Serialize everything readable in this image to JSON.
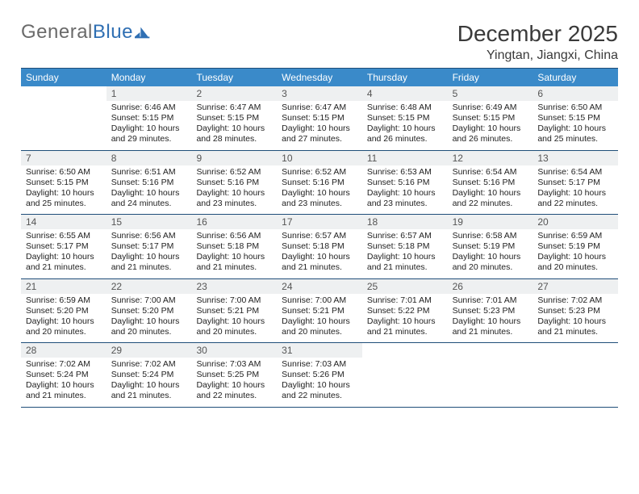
{
  "brand": {
    "name_grey": "General",
    "name_blue": "Blue"
  },
  "header": {
    "title": "December 2025",
    "location": "Yingtan, Jiangxi, China"
  },
  "colors": {
    "header_bar": "#3a8ac9",
    "rule": "#1f4e79",
    "daynum_bg": "#eef0f1",
    "logo_blue": "#2f6fb3",
    "logo_grey": "#6a6a6a"
  },
  "fonts": {
    "title_size_pt": 21,
    "location_size_pt": 12,
    "dow_size_pt": 9,
    "body_size_pt": 8
  },
  "dow": [
    "Sunday",
    "Monday",
    "Tuesday",
    "Wednesday",
    "Thursday",
    "Friday",
    "Saturday"
  ],
  "weeks": [
    [
      {
        "n": "",
        "sunrise": "",
        "sunset": "",
        "daylight": ""
      },
      {
        "n": "1",
        "sunrise": "Sunrise: 6:46 AM",
        "sunset": "Sunset: 5:15 PM",
        "daylight": "Daylight: 10 hours and 29 minutes."
      },
      {
        "n": "2",
        "sunrise": "Sunrise: 6:47 AM",
        "sunset": "Sunset: 5:15 PM",
        "daylight": "Daylight: 10 hours and 28 minutes."
      },
      {
        "n": "3",
        "sunrise": "Sunrise: 6:47 AM",
        "sunset": "Sunset: 5:15 PM",
        "daylight": "Daylight: 10 hours and 27 minutes."
      },
      {
        "n": "4",
        "sunrise": "Sunrise: 6:48 AM",
        "sunset": "Sunset: 5:15 PM",
        "daylight": "Daylight: 10 hours and 26 minutes."
      },
      {
        "n": "5",
        "sunrise": "Sunrise: 6:49 AM",
        "sunset": "Sunset: 5:15 PM",
        "daylight": "Daylight: 10 hours and 26 minutes."
      },
      {
        "n": "6",
        "sunrise": "Sunrise: 6:50 AM",
        "sunset": "Sunset: 5:15 PM",
        "daylight": "Daylight: 10 hours and 25 minutes."
      }
    ],
    [
      {
        "n": "7",
        "sunrise": "Sunrise: 6:50 AM",
        "sunset": "Sunset: 5:15 PM",
        "daylight": "Daylight: 10 hours and 25 minutes."
      },
      {
        "n": "8",
        "sunrise": "Sunrise: 6:51 AM",
        "sunset": "Sunset: 5:16 PM",
        "daylight": "Daylight: 10 hours and 24 minutes."
      },
      {
        "n": "9",
        "sunrise": "Sunrise: 6:52 AM",
        "sunset": "Sunset: 5:16 PM",
        "daylight": "Daylight: 10 hours and 23 minutes."
      },
      {
        "n": "10",
        "sunrise": "Sunrise: 6:52 AM",
        "sunset": "Sunset: 5:16 PM",
        "daylight": "Daylight: 10 hours and 23 minutes."
      },
      {
        "n": "11",
        "sunrise": "Sunrise: 6:53 AM",
        "sunset": "Sunset: 5:16 PM",
        "daylight": "Daylight: 10 hours and 23 minutes."
      },
      {
        "n": "12",
        "sunrise": "Sunrise: 6:54 AM",
        "sunset": "Sunset: 5:16 PM",
        "daylight": "Daylight: 10 hours and 22 minutes."
      },
      {
        "n": "13",
        "sunrise": "Sunrise: 6:54 AM",
        "sunset": "Sunset: 5:17 PM",
        "daylight": "Daylight: 10 hours and 22 minutes."
      }
    ],
    [
      {
        "n": "14",
        "sunrise": "Sunrise: 6:55 AM",
        "sunset": "Sunset: 5:17 PM",
        "daylight": "Daylight: 10 hours and 21 minutes."
      },
      {
        "n": "15",
        "sunrise": "Sunrise: 6:56 AM",
        "sunset": "Sunset: 5:17 PM",
        "daylight": "Daylight: 10 hours and 21 minutes."
      },
      {
        "n": "16",
        "sunrise": "Sunrise: 6:56 AM",
        "sunset": "Sunset: 5:18 PM",
        "daylight": "Daylight: 10 hours and 21 minutes."
      },
      {
        "n": "17",
        "sunrise": "Sunrise: 6:57 AM",
        "sunset": "Sunset: 5:18 PM",
        "daylight": "Daylight: 10 hours and 21 minutes."
      },
      {
        "n": "18",
        "sunrise": "Sunrise: 6:57 AM",
        "sunset": "Sunset: 5:18 PM",
        "daylight": "Daylight: 10 hours and 21 minutes."
      },
      {
        "n": "19",
        "sunrise": "Sunrise: 6:58 AM",
        "sunset": "Sunset: 5:19 PM",
        "daylight": "Daylight: 10 hours and 20 minutes."
      },
      {
        "n": "20",
        "sunrise": "Sunrise: 6:59 AM",
        "sunset": "Sunset: 5:19 PM",
        "daylight": "Daylight: 10 hours and 20 minutes."
      }
    ],
    [
      {
        "n": "21",
        "sunrise": "Sunrise: 6:59 AM",
        "sunset": "Sunset: 5:20 PM",
        "daylight": "Daylight: 10 hours and 20 minutes."
      },
      {
        "n": "22",
        "sunrise": "Sunrise: 7:00 AM",
        "sunset": "Sunset: 5:20 PM",
        "daylight": "Daylight: 10 hours and 20 minutes."
      },
      {
        "n": "23",
        "sunrise": "Sunrise: 7:00 AM",
        "sunset": "Sunset: 5:21 PM",
        "daylight": "Daylight: 10 hours and 20 minutes."
      },
      {
        "n": "24",
        "sunrise": "Sunrise: 7:00 AM",
        "sunset": "Sunset: 5:21 PM",
        "daylight": "Daylight: 10 hours and 20 minutes."
      },
      {
        "n": "25",
        "sunrise": "Sunrise: 7:01 AM",
        "sunset": "Sunset: 5:22 PM",
        "daylight": "Daylight: 10 hours and 21 minutes."
      },
      {
        "n": "26",
        "sunrise": "Sunrise: 7:01 AM",
        "sunset": "Sunset: 5:23 PM",
        "daylight": "Daylight: 10 hours and 21 minutes."
      },
      {
        "n": "27",
        "sunrise": "Sunrise: 7:02 AM",
        "sunset": "Sunset: 5:23 PM",
        "daylight": "Daylight: 10 hours and 21 minutes."
      }
    ],
    [
      {
        "n": "28",
        "sunrise": "Sunrise: 7:02 AM",
        "sunset": "Sunset: 5:24 PM",
        "daylight": "Daylight: 10 hours and 21 minutes."
      },
      {
        "n": "29",
        "sunrise": "Sunrise: 7:02 AM",
        "sunset": "Sunset: 5:24 PM",
        "daylight": "Daylight: 10 hours and 21 minutes."
      },
      {
        "n": "30",
        "sunrise": "Sunrise: 7:03 AM",
        "sunset": "Sunset: 5:25 PM",
        "daylight": "Daylight: 10 hours and 22 minutes."
      },
      {
        "n": "31",
        "sunrise": "Sunrise: 7:03 AM",
        "sunset": "Sunset: 5:26 PM",
        "daylight": "Daylight: 10 hours and 22 minutes."
      },
      {
        "n": "",
        "sunrise": "",
        "sunset": "",
        "daylight": ""
      },
      {
        "n": "",
        "sunrise": "",
        "sunset": "",
        "daylight": ""
      },
      {
        "n": "",
        "sunrise": "",
        "sunset": "",
        "daylight": ""
      }
    ]
  ]
}
